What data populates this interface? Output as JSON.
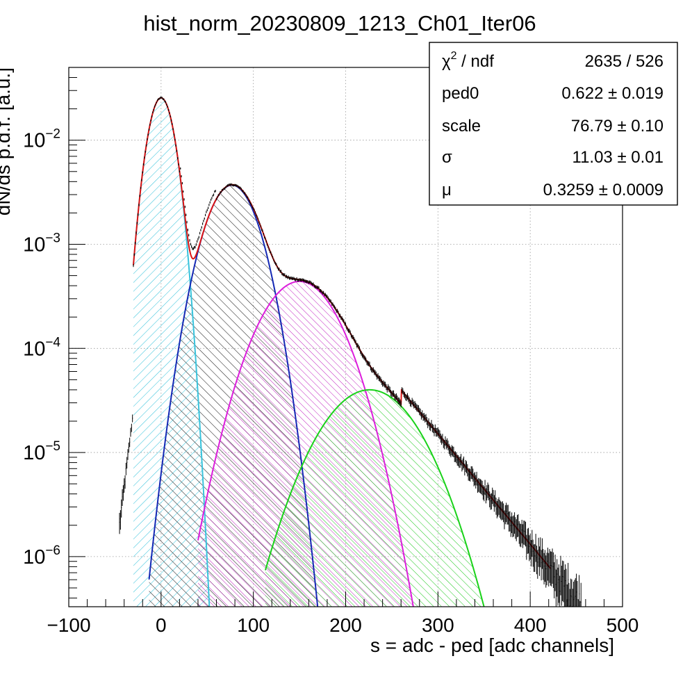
{
  "chart_data": {
    "type": "line",
    "title": "hist_norm_20230809_1213_Ch01_Iter06",
    "xlabel": "s = adc - ped [adc channels]",
    "ylabel": "dN/ds p.d.f. [a.u.]",
    "xlim": [
      -100,
      500
    ],
    "ylim": [
      3.3e-07,
      0.05
    ],
    "y_log_scale": true,
    "grid": true,
    "x_ticks": [
      "−100",
      "0",
      "100",
      "200",
      "300",
      "400",
      "500"
    ],
    "x_tick_values": [
      -100,
      0,
      100,
      200,
      300,
      400,
      500
    ],
    "y_ticks": [
      {
        "base": "10",
        "exp": "−2",
        "value": 0.01
      },
      {
        "base": "10",
        "exp": "−3",
        "value": 0.001
      },
      {
        "base": "10",
        "exp": "−4",
        "value": 0.0001
      },
      {
        "base": "10",
        "exp": "−5",
        "value": 1e-05
      },
      {
        "base": "10",
        "exp": "−6",
        "value": 1e-06
      }
    ],
    "stats_box": {
      "placement": "top-right",
      "rows": [
        {
          "name": "χ",
          "sup": "2",
          "name_suffix": " / ndf",
          "value": "2635 / 526"
        },
        {
          "name": "ped0",
          "sup": "",
          "name_suffix": "",
          "value": "0.622 ± 0.019"
        },
        {
          "name": "scale",
          "sup": "",
          "name_suffix": "",
          "value": "76.79 ± 0.10"
        },
        {
          "name": "σ",
          "sup": "",
          "name_suffix": "",
          "value": "11.03 ± 0.01"
        },
        {
          "name": "μ",
          "sup": "",
          "name_suffix": "",
          "value": "0.3259 ± 0.0009"
        }
      ]
    },
    "fit_params": {
      "ped0": 0.622,
      "scale": 76.79,
      "sigma": 11.03,
      "mu": 0.3259
    },
    "series": [
      {
        "kind": "pe0",
        "color": "#39c3dc",
        "hatch": true,
        "mean": 0,
        "sigma": 11.03,
        "peak": 0.0255,
        "x_range": [
          -30,
          53
        ]
      },
      {
        "kind": "pe1",
        "color": "#1428b4",
        "hatch": true,
        "mean": 76.8,
        "sigma": 21.5,
        "peak": 0.0037,
        "x_range": [
          -13,
          201
        ]
      },
      {
        "kind": "pe2",
        "color": "#dc1edc",
        "hatch": true,
        "mean": 150,
        "sigma": 32.5,
        "peak": 0.00044,
        "x_range": [
          40,
          296
        ]
      },
      {
        "kind": "pe3",
        "color": "#19d219",
        "hatch": true,
        "mean": 226,
        "sigma": 40,
        "peak": 4e-05,
        "x_range": [
          113,
          369
        ]
      },
      {
        "kind": "total",
        "color": "#dc1414",
        "hatch": false,
        "x_range": [
          -30,
          422
        ]
      },
      {
        "kind": "data",
        "color": "#000000",
        "hatch": false,
        "x_range": [
          -45,
          455
        ]
      }
    ]
  }
}
